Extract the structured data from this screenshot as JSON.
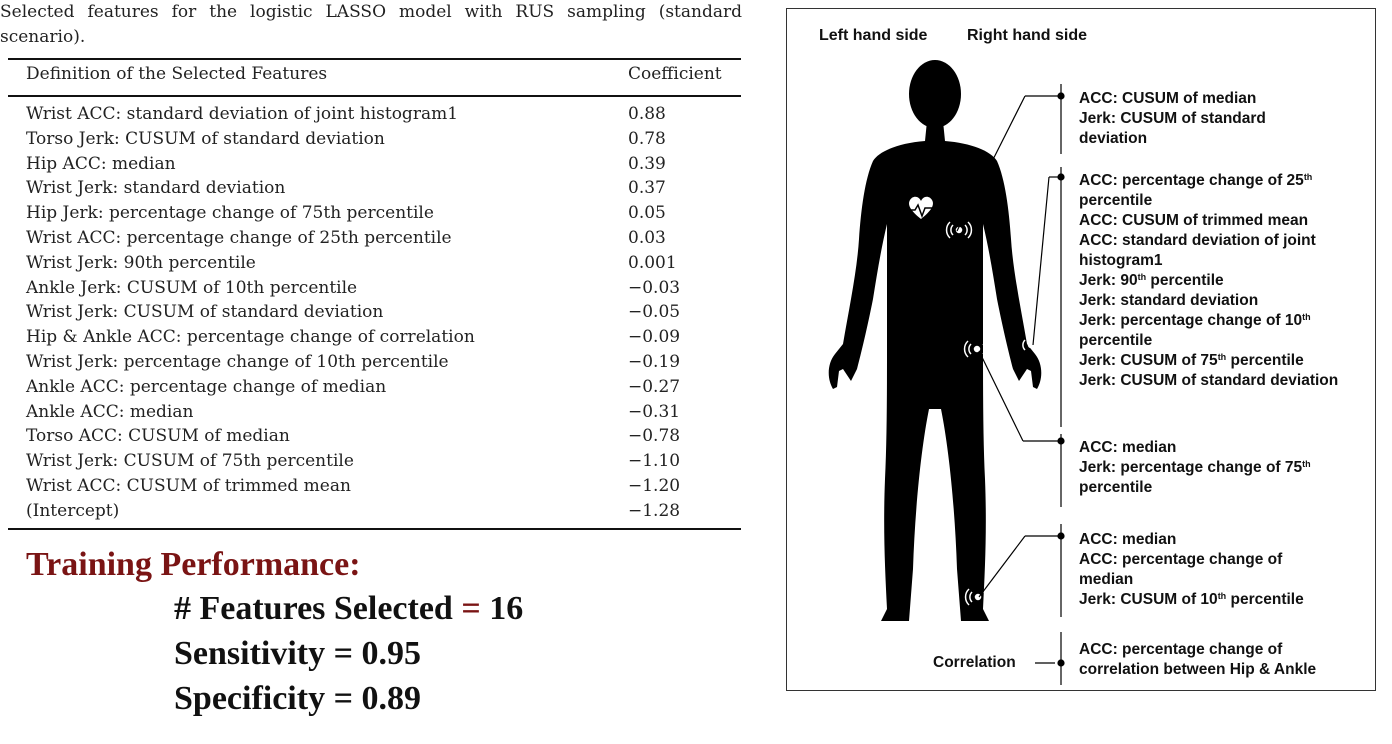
{
  "caption": "Selected features for the logistic LASSO model with RUS sampling (standard scenario).",
  "table": {
    "col_definition": "Definition of the Selected Features",
    "col_coefficient": "Coefficient",
    "rows": [
      {
        "feature": "Wrist ACC: standard deviation of joint histogram1",
        "coef": "0.88"
      },
      {
        "feature": "Torso Jerk: CUSUM of standard deviation",
        "coef": "0.78"
      },
      {
        "feature": "Hip ACC: median",
        "coef": "0.39"
      },
      {
        "feature": "Wrist Jerk: standard deviation",
        "coef": "0.37"
      },
      {
        "feature": "Hip Jerk: percentage change of 75th percentile",
        "coef": "0.05"
      },
      {
        "feature": "Wrist ACC: percentage change of 25th percentile",
        "coef": "0.03"
      },
      {
        "feature": "Wrist Jerk: 90th percentile",
        "coef": "0.001"
      },
      {
        "feature": "Ankle Jerk: CUSUM of 10th percentile",
        "coef": "−0.03"
      },
      {
        "feature": "Wrist Jerk: CUSUM of standard deviation",
        "coef": "−0.05"
      },
      {
        "feature": "Hip & Ankle ACC: percentage change of correlation",
        "coef": "−0.09"
      },
      {
        "feature": "Wrist Jerk: percentage change of 10th percentile",
        "coef": "−0.19"
      },
      {
        "feature": "Ankle ACC: percentage change of median",
        "coef": "−0.27"
      },
      {
        "feature": "Ankle ACC: median",
        "coef": "−0.31"
      },
      {
        "feature": "Torso ACC: CUSUM of median",
        "coef": "−0.78"
      },
      {
        "feature": "Wrist Jerk: CUSUM of 75th percentile",
        "coef": "−1.10"
      },
      {
        "feature": "Wrist ACC: CUSUM of trimmed mean",
        "coef": "−1.20"
      },
      {
        "feature": "(Intercept)",
        "coef": "−1.28"
      }
    ]
  },
  "performance": {
    "title": "Training Performance:",
    "features_label": "# Features Selected",
    "features_eq": "=",
    "features_value": "16",
    "sensitivity": "Sensitivity = 0.95",
    "specificity": "Specificity = 0.89"
  },
  "figure": {
    "left_label": "Left hand side",
    "right_label": "Right hand side",
    "correlation_label": "Correlation",
    "torso": {
      "l1": "ACC: CUSUM of median",
      "l2": "Jerk: CUSUM of  standard",
      "l3": "deviation"
    },
    "wrist": {
      "l1a": "ACC: percentage change of 25",
      "l1sup": "th",
      "l2": "percentile",
      "l3": "ACC: CUSUM of trimmed mean",
      "l4": "ACC: standard deviation of joint",
      "l5": "histogram1",
      "l6a": "Jerk: 90",
      "l6sup": "th",
      "l6b": "  percentile",
      "l7": "Jerk: standard deviation",
      "l8a": "Jerk: percentage change of 10",
      "l8sup": "th",
      "l9": "percentile",
      "l10a": "Jerk: CUSUM of 75",
      "l10sup": "th",
      "l10b": "  percentile",
      "l11": "Jerk: CUSUM of standard deviation"
    },
    "hip": {
      "l1": "ACC: median",
      "l2a": "Jerk: percentage change of 75",
      "l2sup": "th",
      "l3": "percentile"
    },
    "ankle": {
      "l1": "ACC: median",
      "l2": "ACC: percentage change of",
      "l3": "median",
      "l4a": "Jerk: CUSUM of 10",
      "l4sup": "th",
      "l4b": "  percentile"
    },
    "corr": {
      "l1": "ACC: percentage change of",
      "l2": "correlation between Hip & Ankle"
    }
  }
}
